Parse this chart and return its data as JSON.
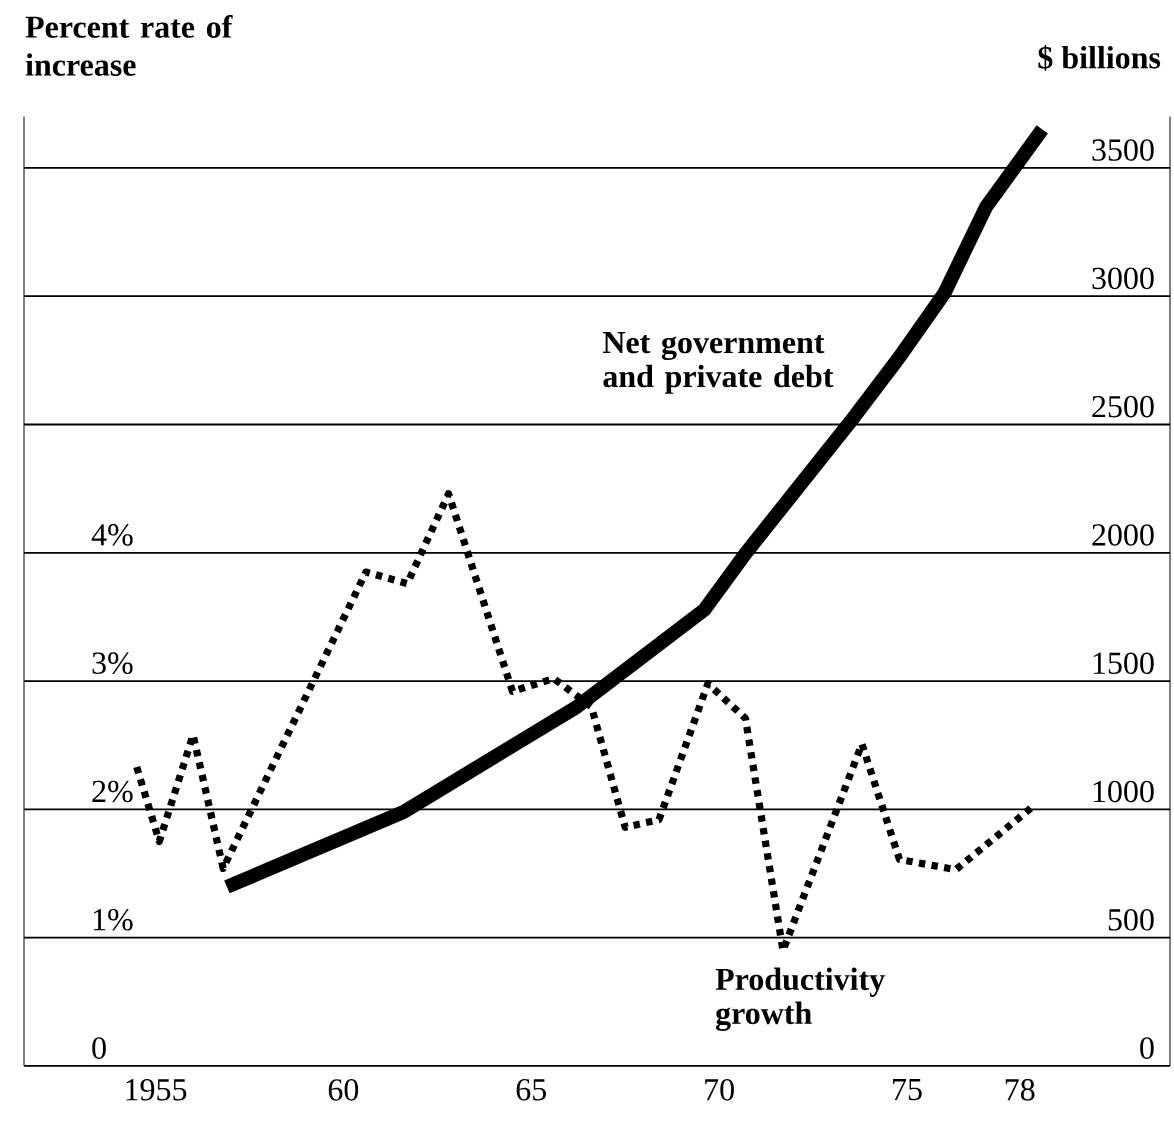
{
  "chart_data": {
    "type": "line",
    "ylabel": "Percent rate of increase",
    "y2label": "$ billions",
    "xlim": [
      1951.5,
      1982
    ],
    "xticks": [
      {
        "value": 1955,
        "label": "1955"
      },
      {
        "value": 1960,
        "label": "60"
      },
      {
        "value": 1965,
        "label": "65"
      },
      {
        "value": 1970,
        "label": "70"
      },
      {
        "value": 1975,
        "label": "75"
      },
      {
        "value": 1978,
        "label": "78"
      }
    ],
    "ylim": [
      0,
      7.4
    ],
    "yticks": [
      {
        "value": 0,
        "label": "0"
      },
      {
        "value": 1,
        "label": "1%"
      },
      {
        "value": 2,
        "label": "2%"
      },
      {
        "value": 3,
        "label": "3%"
      },
      {
        "value": 4,
        "label": "4%"
      }
    ],
    "y2lim": [
      0,
      3700
    ],
    "y2ticks": [
      0,
      500,
      1000,
      1500,
      2000,
      2500,
      3000,
      3500
    ],
    "grid": "y",
    "legend": false,
    "marker": "none",
    "series": [
      {
        "name": "Productivity growth",
        "color": "#000000",
        "line_style": "dotted",
        "x": [
          1954.5,
          1955.1,
          1956.0,
          1956.8,
          1960.6,
          1961.7,
          1962.8,
          1964.5,
          1965.6,
          1966.6,
          1967.5,
          1968.4,
          1969.7,
          1970.7,
          1971.7,
          1973.8,
          1974.8,
          1976.3,
          1978.3
        ],
        "values": [
          2.33,
          1.75,
          2.58,
          1.54,
          3.85,
          3.76,
          4.46,
          2.92,
          3.02,
          2.8,
          1.86,
          1.92,
          2.98,
          2.71,
          0.9,
          2.51,
          1.61,
          1.53,
          2.01
        ]
      },
      {
        "name": "Net government and private debt",
        "color": "#000000",
        "line_style": "solid",
        "axis": "y2",
        "x": [
          1956.9,
          1961.6,
          1966.2,
          1969.6,
          1970.7,
          1973.5,
          1974.8,
          1976.0,
          1977.1,
          1978.6
        ],
        "values": [
          698,
          990,
          1398,
          1777,
          1997,
          2512,
          2763,
          3013,
          3347,
          3650
        ]
      }
    ]
  }
}
